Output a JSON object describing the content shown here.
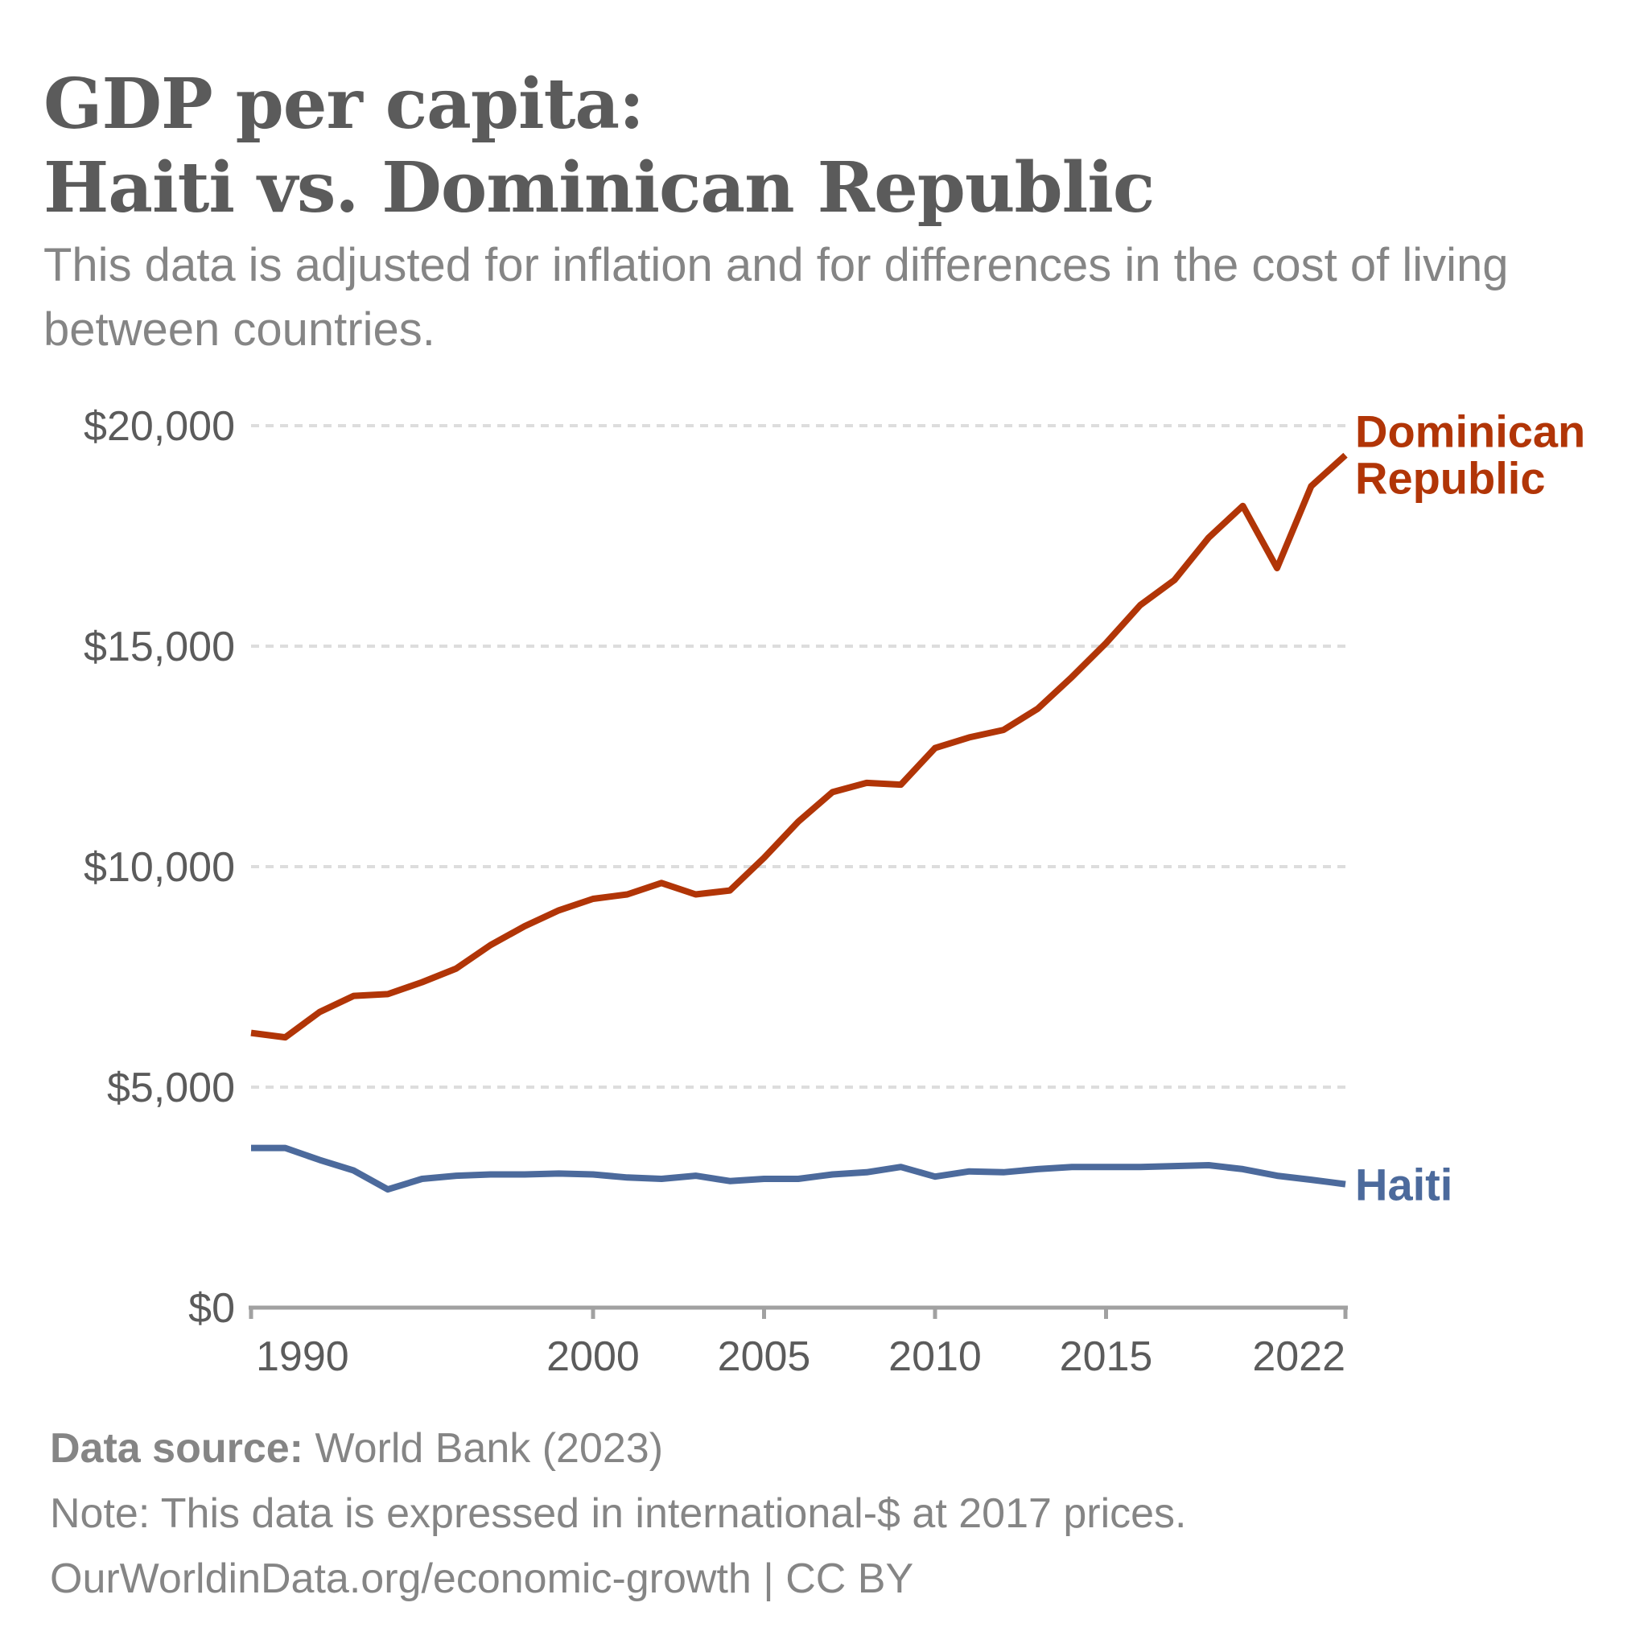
{
  "title_line1": "GDP per capita:",
  "title_line2": "Haiti vs. Dominican Republic",
  "subtitle": "This data is adjusted for inflation and for differences in the cost of living between countries.",
  "footer": {
    "source_label": "Data source:",
    "source_value": "World Bank (2023)",
    "note": "Note: This data is expressed in international-$ at 2017 prices.",
    "url_license": "OurWorldinData.org/economic-growth | CC BY"
  },
  "chart_data": {
    "type": "line",
    "title": "GDP per capita: Haiti vs. Dominican Republic",
    "subtitle": "This data is adjusted for inflation and for differences in the cost of living between countries.",
    "xlabel": "",
    "ylabel": "",
    "x": [
      1990,
      1991,
      1992,
      1993,
      1994,
      1995,
      1996,
      1997,
      1998,
      1999,
      2000,
      2001,
      2002,
      2003,
      2004,
      2005,
      2006,
      2007,
      2008,
      2009,
      2010,
      2011,
      2012,
      2013,
      2014,
      2015,
      2016,
      2017,
      2018,
      2019,
      2020,
      2021,
      2022
    ],
    "xlim": [
      1990,
      2022
    ],
    "ylim": [
      0,
      20000
    ],
    "x_ticks": [
      {
        "value": 1990,
        "label": "1990"
      },
      {
        "value": 2000,
        "label": "2000"
      },
      {
        "value": 2005,
        "label": "2005"
      },
      {
        "value": 2010,
        "label": "2010"
      },
      {
        "value": 2015,
        "label": "2015"
      },
      {
        "value": 2022,
        "label": "2022"
      }
    ],
    "y_ticks": [
      {
        "value": 0,
        "label": "$0"
      },
      {
        "value": 5000,
        "label": "$5,000"
      },
      {
        "value": 10000,
        "label": "$10,000"
      },
      {
        "value": 15000,
        "label": "$15,000"
      },
      {
        "value": 20000,
        "label": "$20,000"
      }
    ],
    "grid": "horizontal-dotted",
    "legend": "inline-right",
    "series": [
      {
        "name": "Dominican Republic",
        "label_lines": [
          "Dominican",
          "Republic"
        ],
        "color": "#b13507",
        "values": [
          6230,
          6130,
          6700,
          7070,
          7110,
          7380,
          7690,
          8220,
          8650,
          9010,
          9270,
          9370,
          9630,
          9370,
          9460,
          10200,
          11020,
          11690,
          11900,
          11860,
          12690,
          12930,
          13100,
          13580,
          14300,
          15070,
          15930,
          16500,
          17460,
          18180,
          16770,
          18630,
          19330
        ]
      },
      {
        "name": "Haiti",
        "label_lines": [
          "Haiti"
        ],
        "color": "#4c6a9c",
        "values": [
          3620,
          3620,
          3350,
          3110,
          2680,
          2920,
          2990,
          3020,
          3020,
          3040,
          3020,
          2950,
          2920,
          2990,
          2870,
          2920,
          2920,
          3020,
          3070,
          3190,
          2970,
          3090,
          3070,
          3140,
          3190,
          3190,
          3190,
          3210,
          3230,
          3140,
          2990,
          2900,
          2800
        ]
      }
    ]
  }
}
